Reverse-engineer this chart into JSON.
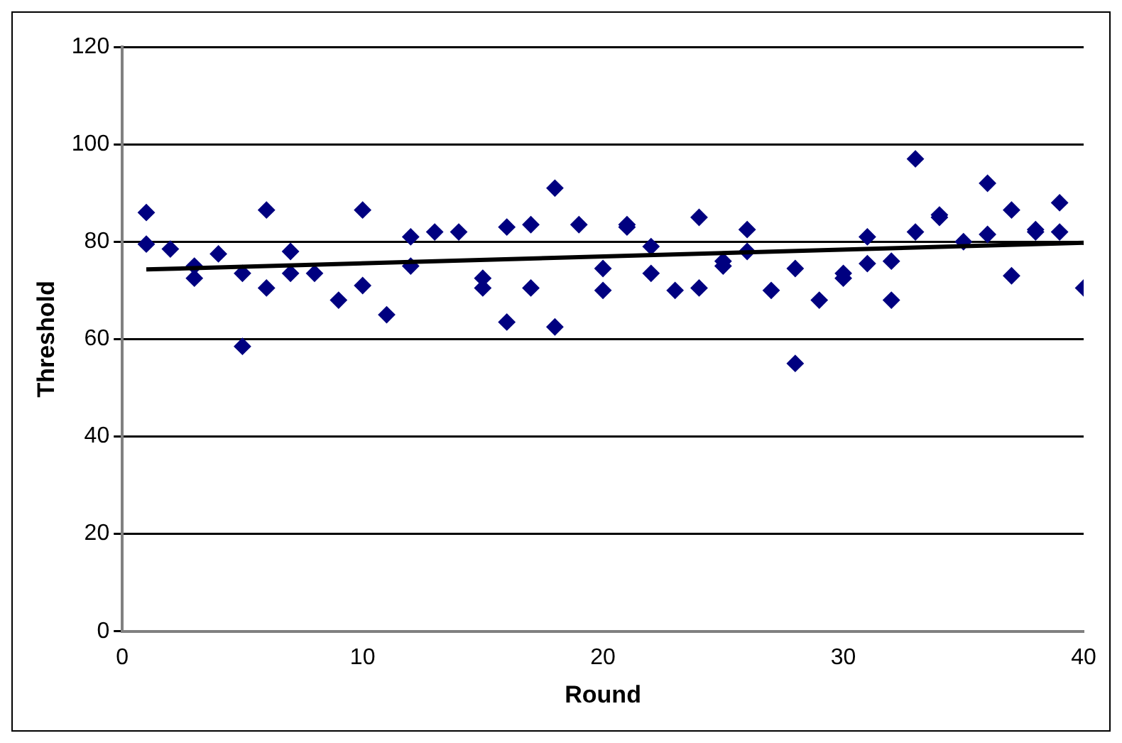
{
  "chart_data": {
    "type": "scatter",
    "xlabel": "Round",
    "ylabel": "Threshold",
    "xlim": [
      0,
      40
    ],
    "xticks": [
      0,
      10,
      20,
      30,
      40
    ],
    "ylim": [
      0,
      120
    ],
    "yticks": [
      0,
      20,
      40,
      60,
      80,
      100,
      120
    ],
    "grid": "y",
    "legend": false,
    "series": [
      {
        "marker": "diamond",
        "color": "#000080",
        "x": [
          1,
          1,
          2,
          3,
          3,
          4,
          5,
          5,
          6,
          6,
          7,
          7,
          8,
          9,
          10,
          10,
          11,
          12,
          12,
          13,
          14,
          15,
          15,
          16,
          16,
          17,
          17,
          18,
          18,
          19,
          20,
          20,
          21,
          21,
          22,
          22,
          23,
          24,
          24,
          25,
          25,
          26,
          26,
          27,
          28,
          28,
          29,
          30,
          30,
          31,
          31,
          32,
          32,
          33,
          33,
          34,
          34,
          35,
          36,
          36,
          37,
          37,
          38,
          38,
          39,
          39,
          40
        ],
        "values": [
          86,
          79.5,
          78.5,
          75,
          72.5,
          77.5,
          73.5,
          58.5,
          86.5,
          70.5,
          78,
          73.5,
          73.5,
          68,
          86.5,
          71,
          65,
          81,
          75,
          82,
          82,
          72.5,
          70.5,
          83,
          63.5,
          83.5,
          70.5,
          91,
          62.5,
          83.5,
          74.5,
          70,
          83.5,
          83,
          79,
          73.5,
          70,
          85,
          70.5,
          76,
          75,
          82.5,
          78,
          70,
          74.5,
          55,
          68,
          73.5,
          72.5,
          81,
          75.5,
          76,
          68,
          97,
          82,
          85.5,
          85,
          80,
          92,
          81.5,
          86.5,
          73,
          82.5,
          82,
          88,
          82,
          70.5
        ]
      },
      {
        "type": "line",
        "marker": "none",
        "color": "#000000",
        "x": [
          1,
          40
        ],
        "values": [
          74.3,
          79.8
        ]
      }
    ]
  }
}
